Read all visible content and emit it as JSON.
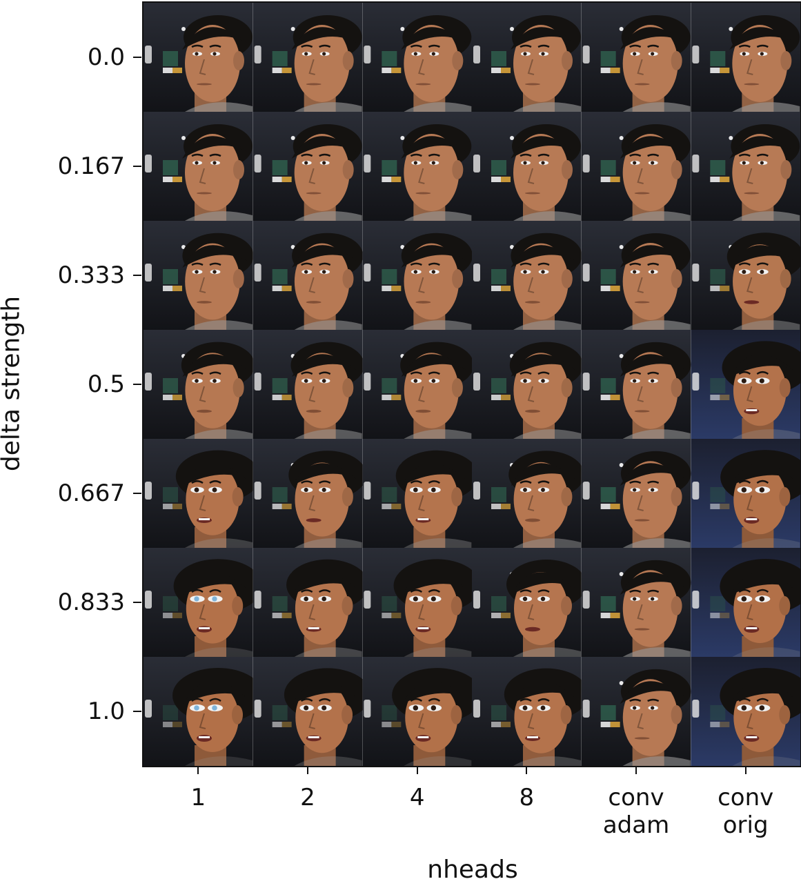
{
  "figure": {
    "ylabel": "delta strength",
    "xlabel": "nheads",
    "rows": [
      "0.0",
      "0.167",
      "0.333",
      "0.5",
      "0.667",
      "0.833",
      "1.0"
    ],
    "cols": [
      "1",
      "2",
      "4",
      "8",
      "conv\nadam",
      "conv\norig"
    ],
    "palette": {
      "bg_dark": "#1b1d24",
      "skin_male": "#b77a55",
      "skin_female": "#b27048",
      "hair": "#141210",
      "shirt": "#9a9a9a",
      "sign_green": "#2e5a4a",
      "sign_yellow": "#d9a43c",
      "light": "#e8e8e8",
      "eye_blue": "#7fb3d9",
      "bg_blue": "#2b3a66"
    },
    "morph": [
      [
        0.0,
        0.0,
        0.0,
        0.0,
        0.0,
        0.0
      ],
      [
        0.0,
        0.0,
        0.0,
        0.0,
        0.0,
        0.0
      ],
      [
        0.1,
        0.1,
        0.1,
        0.1,
        0.0,
        0.35
      ],
      [
        0.2,
        0.2,
        0.2,
        0.2,
        0.05,
        0.8
      ],
      [
        0.7,
        0.4,
        0.6,
        0.3,
        0.05,
        0.95
      ],
      [
        0.9,
        0.6,
        0.8,
        0.5,
        0.05,
        1.0
      ],
      [
        1.0,
        0.8,
        0.95,
        0.7,
        0.05,
        1.0
      ]
    ]
  }
}
